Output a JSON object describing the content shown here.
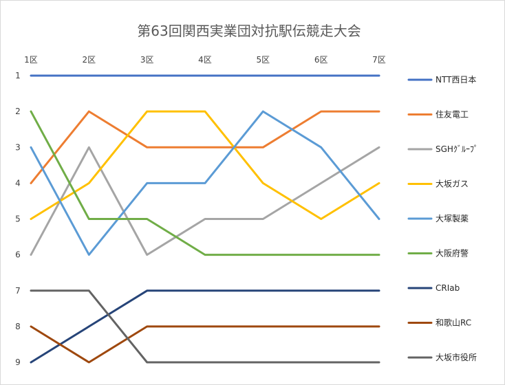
{
  "chart_data": {
    "type": "line",
    "title": "第63回関西実業団対抗駅伝競走大会",
    "xlabel": "",
    "ylabel": "",
    "categories": [
      "1区",
      "2区",
      "3区",
      "4区",
      "5区",
      "6区",
      "7区"
    ],
    "y_ticks": [
      "1",
      "2",
      "3",
      "4",
      "5",
      "6",
      "7",
      "8",
      "9"
    ],
    "ylim": [
      1,
      9
    ],
    "y_inverted": true,
    "grid": false,
    "legend_position": "right",
    "series": [
      {
        "name": "NTT西日本",
        "values": [
          1,
          1,
          1,
          1,
          1,
          1,
          1
        ],
        "color": "#4472C4"
      },
      {
        "name": "住友電工",
        "values": [
          4,
          2,
          3,
          3,
          3,
          2,
          2
        ],
        "color": "#ED7D31"
      },
      {
        "name": "SGHｸﾞﾙｰﾌﾟ",
        "values": [
          6,
          3,
          6,
          5,
          5,
          4,
          3
        ],
        "color": "#A5A5A5"
      },
      {
        "name": "大坂ガス",
        "values": [
          5,
          4,
          2,
          2,
          4,
          5,
          4
        ],
        "color": "#FFC000"
      },
      {
        "name": "大塚製薬",
        "values": [
          3,
          6,
          4,
          4,
          2,
          3,
          5
        ],
        "color": "#5B9BD5"
      },
      {
        "name": "大阪府警",
        "values": [
          2,
          5,
          5,
          6,
          6,
          6,
          6
        ],
        "color": "#70AD47"
      },
      {
        "name": "CRIab",
        "values": [
          9,
          8,
          7,
          7,
          7,
          7,
          7
        ],
        "color": "#264478"
      },
      {
        "name": "和歌山RC",
        "values": [
          8,
          9,
          8,
          8,
          8,
          8,
          8
        ],
        "color": "#9E480E"
      },
      {
        "name": "大坂市役所",
        "values": [
          7,
          7,
          9,
          9,
          9,
          9,
          9
        ],
        "color": "#636363"
      }
    ]
  }
}
